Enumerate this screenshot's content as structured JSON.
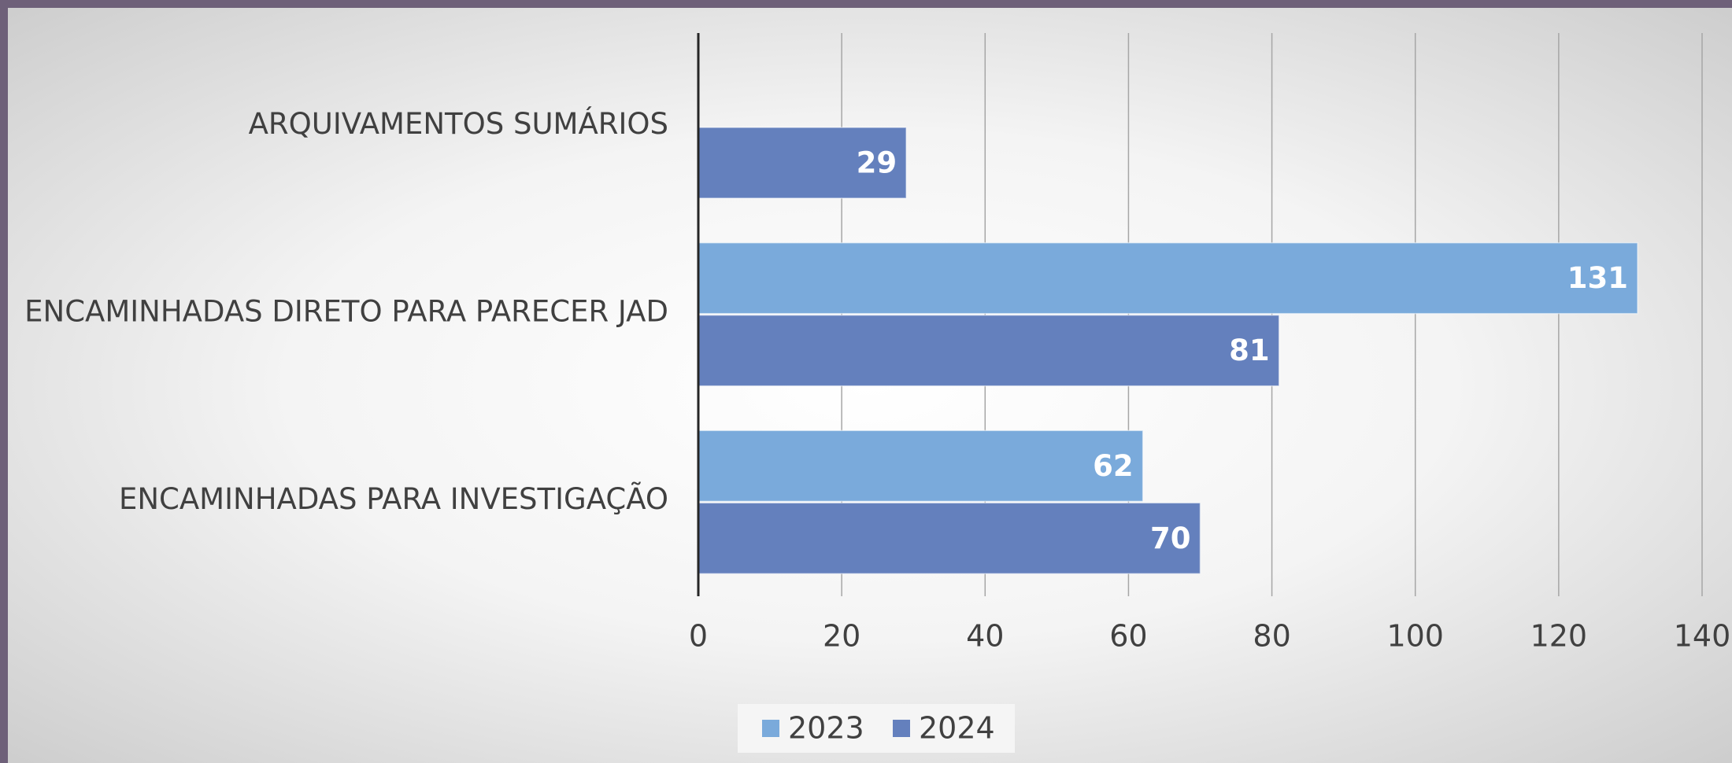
{
  "chart_data": {
    "type": "hbar",
    "categories": [
      "ARQUIVAMENTOS SUMÁRIOS",
      "ENCAMINHADAS DIRETO PARA PARECER JAD",
      "ENCAMINHADAS PARA INVESTIGAÇÃO"
    ],
    "series": [
      {
        "name": "2023",
        "color": "#7aaadb",
        "values": [
          null,
          131,
          62
        ]
      },
      {
        "name": "2024",
        "color": "#6480bd",
        "values": [
          29,
          81,
          70
        ]
      }
    ],
    "xlim": [
      0,
      140
    ],
    "xticks": [
      0,
      20,
      40,
      60,
      80,
      100,
      120,
      140
    ],
    "grid": true,
    "legend": "bottom"
  }
}
